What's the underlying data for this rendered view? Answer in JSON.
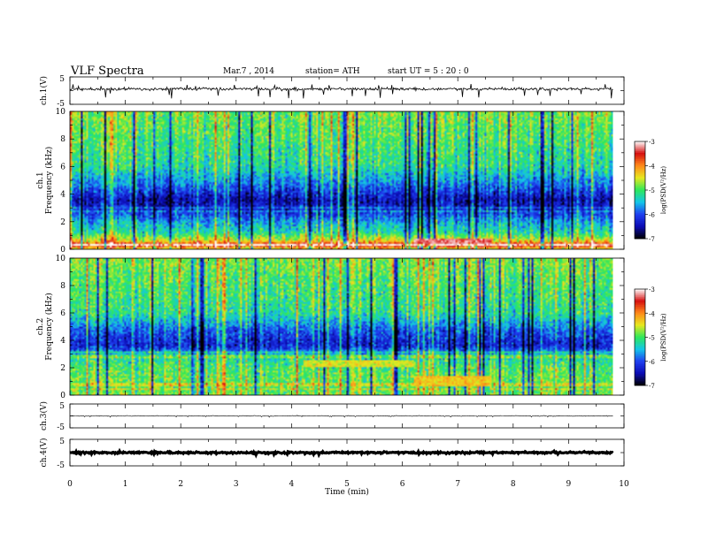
{
  "header": {
    "title": "VLF  Spectra",
    "date": "Mar.7  , 2014",
    "station": "station= ATH",
    "start": "start  UT  =   5  : 20 : 0"
  },
  "chart_data": [
    {
      "type": "line",
      "name": "ch1-waveform",
      "ylabel": "ch.1(V)",
      "ylim": [
        -5,
        5
      ],
      "yticks": [
        "5",
        "-5"
      ],
      "xlim": [
        0,
        10
      ],
      "duration_min": 9.8,
      "baseline_v": 0.6,
      "noise_v": 0.5,
      "spike_v": 2.5
    },
    {
      "type": "heatmap",
      "name": "ch1-spectrogram",
      "ylabel": "ch.1\nFrequency (kHz)",
      "ylim": [
        0,
        10
      ],
      "yticks": [
        "0",
        "2",
        "4",
        "6",
        "8",
        "10"
      ],
      "xlim": [
        0,
        10
      ],
      "duration_min": 9.8,
      "colorbar": {
        "label": "log(PSD(V²/Hz)",
        "range": [
          -7,
          -3
        ],
        "ticks": [
          "-3",
          "-4",
          "-5",
          "-6",
          "-7"
        ]
      },
      "frequency_profile_logpsd": [
        {
          "f_khz": 0.0,
          "v": -4.6
        },
        {
          "f_khz": 0.3,
          "v": -3.3
        },
        {
          "f_khz": 0.6,
          "v": -4.4
        },
        {
          "f_khz": 1.2,
          "v": -5.2
        },
        {
          "f_khz": 2.0,
          "v": -5.6
        },
        {
          "f_khz": 2.8,
          "v": -6.2
        },
        {
          "f_khz": 3.6,
          "v": -6.5
        },
        {
          "f_khz": 4.5,
          "v": -5.9
        },
        {
          "f_khz": 6.0,
          "v": -5.2
        },
        {
          "f_khz": 8.0,
          "v": -5.0
        },
        {
          "f_khz": 10.0,
          "v": -4.8
        }
      ],
      "events": [
        {
          "t_start": 6.2,
          "t_end": 7.6,
          "f_low": 0.4,
          "f_high": 0.8,
          "v": -3.3
        }
      ]
    },
    {
      "type": "heatmap",
      "name": "ch2-spectrogram",
      "ylabel": "ch.2\nFrequency (kHz)",
      "ylim": [
        0,
        10
      ],
      "yticks": [
        "0",
        "2",
        "4",
        "6",
        "8",
        "10"
      ],
      "xlim": [
        0,
        10
      ],
      "duration_min": 9.8,
      "colorbar": {
        "label": "log(PSD(V²/Hz)",
        "range": [
          -7,
          -3
        ],
        "ticks": [
          "-3",
          "-4",
          "-5",
          "-6",
          "-7"
        ]
      },
      "frequency_profile_logpsd": [
        {
          "f_khz": 0.0,
          "v": -4.8
        },
        {
          "f_khz": 0.5,
          "v": -5.0
        },
        {
          "f_khz": 1.2,
          "v": -4.9
        },
        {
          "f_khz": 2.0,
          "v": -5.0
        },
        {
          "f_khz": 2.8,
          "v": -5.3
        },
        {
          "f_khz": 3.6,
          "v": -6.3
        },
        {
          "f_khz": 4.6,
          "v": -6.0
        },
        {
          "f_khz": 6.0,
          "v": -5.2
        },
        {
          "f_khz": 8.0,
          "v": -5.0
        },
        {
          "f_khz": 10.0,
          "v": -4.8
        }
      ],
      "events": [
        {
          "t_start": 4.2,
          "t_end": 6.2,
          "f_low": 2.0,
          "f_high": 2.6,
          "v": -4.5
        },
        {
          "t_start": 6.2,
          "t_end": 7.6,
          "f_low": 0.6,
          "f_high": 1.4,
          "v": -4.3
        }
      ]
    },
    {
      "type": "line",
      "name": "ch3-waveform",
      "ylabel": "ch.3(V)",
      "ylim": [
        -5,
        5
      ],
      "yticks": [
        "5",
        "-5"
      ],
      "xlim": [
        0,
        10
      ],
      "duration_min": 9.8,
      "baseline_v": 0.0,
      "noise_v": 0.15,
      "spike_v": 0.3
    },
    {
      "type": "line",
      "name": "ch4-waveform",
      "ylabel": "ch.4(V)",
      "ylim": [
        -5,
        5
      ],
      "yticks": [
        "5",
        "-5"
      ],
      "xlim": [
        0,
        10
      ],
      "duration_min": 9.8,
      "baseline_v": 0.0,
      "noise_v": 0.3,
      "spike_v": 0.4
    }
  ],
  "xaxis": {
    "xlabel": "Time  (min)",
    "xlim": [
      0,
      10
    ],
    "ticks": [
      "0",
      "1",
      "2",
      "3",
      "4",
      "5",
      "6",
      "7",
      "8",
      "9",
      "10"
    ]
  },
  "colors": {
    "colormap": [
      "#000000",
      "#0b0bb4",
      "#1f3ff0",
      "#13c6e8",
      "#2ee85a",
      "#e6e81f",
      "#ff8a1a",
      "#d61010",
      "#ffffff"
    ]
  }
}
